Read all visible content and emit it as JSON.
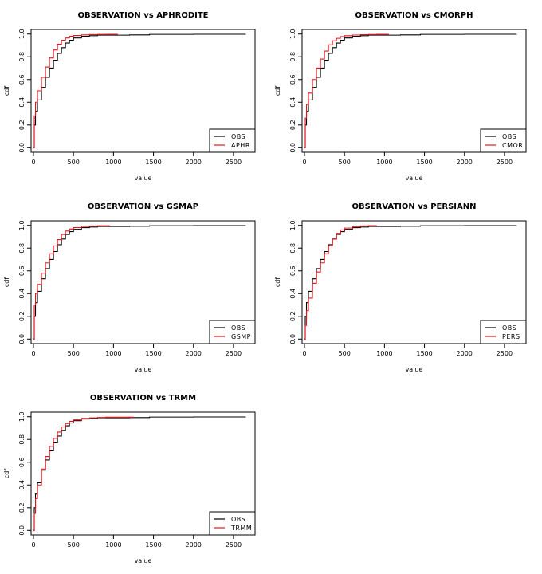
{
  "chart_data": [
    {
      "type": "line",
      "title": "OBSERVATION vs APHRODITE",
      "xlabel": "value",
      "ylabel": "cdf",
      "xlim": [
        -30,
        2770
      ],
      "ylim": [
        -0.04,
        1.04
      ],
      "xticks": [
        0,
        500,
        1000,
        1500,
        2000,
        2500
      ],
      "yticks": [
        0.0,
        0.2,
        0.4,
        0.6,
        0.8,
        1.0
      ],
      "legend_position": "bottom-right",
      "series": [
        {
          "name": "OBS",
          "color": "#000000",
          "x": [
            0,
            10,
            25,
            50,
            100,
            150,
            200,
            250,
            300,
            350,
            400,
            450,
            500,
            600,
            700,
            800,
            1000,
            1200,
            1450,
            2000,
            2650
          ],
          "y": [
            0.0,
            0.2,
            0.32,
            0.42,
            0.53,
            0.62,
            0.7,
            0.77,
            0.83,
            0.88,
            0.92,
            0.945,
            0.965,
            0.98,
            0.985,
            0.99,
            0.99,
            0.992,
            0.997,
            0.998,
            1.0
          ]
        },
        {
          "name": "APHR",
          "color": "#e8141c",
          "x": [
            0,
            10,
            25,
            50,
            100,
            150,
            200,
            250,
            300,
            350,
            400,
            450,
            500,
            600,
            700,
            800,
            900,
            1050
          ],
          "y": [
            0.0,
            0.28,
            0.4,
            0.5,
            0.62,
            0.71,
            0.79,
            0.86,
            0.91,
            0.945,
            0.965,
            0.98,
            0.987,
            0.992,
            0.995,
            0.997,
            0.998,
            1.0
          ]
        }
      ]
    },
    {
      "type": "line",
      "title": "OBSERVATION vs CMORPH",
      "xlabel": "value",
      "ylabel": "cdf",
      "xlim": [
        -30,
        2770
      ],
      "ylim": [
        -0.04,
        1.04
      ],
      "xticks": [
        0,
        500,
        1000,
        1500,
        2000,
        2500
      ],
      "yticks": [
        0.0,
        0.2,
        0.4,
        0.6,
        0.8,
        1.0
      ],
      "legend_position": "bottom-right",
      "series": [
        {
          "name": "OBS",
          "color": "#000000",
          "x": [
            0,
            10,
            25,
            50,
            100,
            150,
            200,
            250,
            300,
            350,
            400,
            450,
            500,
            600,
            700,
            800,
            1000,
            1200,
            1450,
            2000,
            2650
          ],
          "y": [
            0.0,
            0.2,
            0.32,
            0.42,
            0.53,
            0.62,
            0.7,
            0.77,
            0.83,
            0.88,
            0.92,
            0.945,
            0.965,
            0.98,
            0.985,
            0.99,
            0.99,
            0.992,
            0.997,
            0.998,
            1.0
          ]
        },
        {
          "name": "CMOR",
          "color": "#e8141c",
          "x": [
            0,
            10,
            25,
            50,
            100,
            150,
            200,
            250,
            300,
            350,
            400,
            450,
            500,
            600,
            700,
            800,
            900,
            1050
          ],
          "y": [
            0.0,
            0.26,
            0.38,
            0.48,
            0.6,
            0.7,
            0.78,
            0.85,
            0.905,
            0.94,
            0.962,
            0.977,
            0.985,
            0.991,
            0.994,
            0.996,
            0.998,
            1.0
          ]
        }
      ]
    },
    {
      "type": "line",
      "title": "OBSERVATION vs GSMAP",
      "xlabel": "value",
      "ylabel": "cdf",
      "xlim": [
        -30,
        2770
      ],
      "ylim": [
        -0.04,
        1.04
      ],
      "xticks": [
        0,
        500,
        1000,
        1500,
        2000,
        2500
      ],
      "yticks": [
        0.0,
        0.2,
        0.4,
        0.6,
        0.8,
        1.0
      ],
      "legend_position": "bottom-right",
      "series": [
        {
          "name": "OBS",
          "color": "#000000",
          "x": [
            0,
            10,
            25,
            50,
            100,
            150,
            200,
            250,
            300,
            350,
            400,
            450,
            500,
            600,
            700,
            800,
            1000,
            1200,
            1450,
            2000,
            2650
          ],
          "y": [
            0.0,
            0.2,
            0.32,
            0.42,
            0.53,
            0.62,
            0.7,
            0.77,
            0.83,
            0.88,
            0.92,
            0.945,
            0.965,
            0.98,
            0.985,
            0.99,
            0.99,
            0.992,
            0.997,
            0.998,
            1.0
          ]
        },
        {
          "name": "GSMP",
          "color": "#e8141c",
          "x": [
            0,
            10,
            25,
            50,
            100,
            150,
            200,
            250,
            300,
            350,
            400,
            450,
            500,
            600,
            700,
            800,
            950
          ],
          "y": [
            0.0,
            0.3,
            0.4,
            0.48,
            0.58,
            0.67,
            0.75,
            0.82,
            0.875,
            0.92,
            0.95,
            0.968,
            0.98,
            0.99,
            0.994,
            0.997,
            1.0
          ]
        }
      ]
    },
    {
      "type": "line",
      "title": "OBSERVATION vs PERSIANN",
      "xlabel": "value",
      "ylabel": "cdf",
      "xlim": [
        -30,
        2770
      ],
      "ylim": [
        -0.04,
        1.04
      ],
      "xticks": [
        0,
        500,
        1000,
        1500,
        2000,
        2500
      ],
      "yticks": [
        0.0,
        0.2,
        0.4,
        0.6,
        0.8,
        1.0
      ],
      "legend_position": "bottom-right",
      "series": [
        {
          "name": "OBS",
          "color": "#000000",
          "x": [
            0,
            10,
            25,
            50,
            100,
            150,
            200,
            250,
            300,
            350,
            400,
            450,
            500,
            600,
            700,
            800,
            1000,
            1200,
            1450,
            2000,
            2650
          ],
          "y": [
            0.0,
            0.2,
            0.32,
            0.42,
            0.53,
            0.62,
            0.7,
            0.77,
            0.83,
            0.88,
            0.92,
            0.945,
            0.965,
            0.98,
            0.985,
            0.99,
            0.99,
            0.992,
            0.997,
            0.998,
            1.0
          ]
        },
        {
          "name": "PERS",
          "color": "#e8141c",
          "x": [
            0,
            10,
            25,
            50,
            100,
            150,
            200,
            250,
            300,
            350,
            400,
            450,
            500,
            600,
            700,
            800,
            900
          ],
          "y": [
            0.0,
            0.12,
            0.25,
            0.36,
            0.49,
            0.59,
            0.67,
            0.75,
            0.82,
            0.88,
            0.93,
            0.96,
            0.976,
            0.989,
            0.995,
            0.998,
            1.0
          ]
        }
      ]
    },
    {
      "type": "line",
      "title": "OBSERVATION vs TRMM",
      "xlabel": "value",
      "ylabel": "cdf",
      "xlim": [
        -30,
        2770
      ],
      "ylim": [
        -0.04,
        1.04
      ],
      "xticks": [
        0,
        500,
        1000,
        1500,
        2000,
        2500
      ],
      "yticks": [
        0.0,
        0.2,
        0.4,
        0.6,
        0.8,
        1.0
      ],
      "legend_position": "bottom-right",
      "series": [
        {
          "name": "OBS",
          "color": "#000000",
          "x": [
            0,
            10,
            25,
            50,
            100,
            150,
            200,
            250,
            300,
            350,
            400,
            450,
            500,
            600,
            700,
            800,
            1000,
            1200,
            1450,
            2000,
            2650
          ],
          "y": [
            0.0,
            0.2,
            0.32,
            0.42,
            0.53,
            0.62,
            0.7,
            0.77,
            0.83,
            0.88,
            0.92,
            0.945,
            0.965,
            0.98,
            0.985,
            0.99,
            0.99,
            0.992,
            0.997,
            0.998,
            1.0
          ]
        },
        {
          "name": "TRMM",
          "color": "#e8141c",
          "x": [
            0,
            10,
            25,
            50,
            100,
            150,
            200,
            250,
            300,
            350,
            400,
            450,
            500,
            600,
            700,
            800,
            900,
            1250
          ],
          "y": [
            0.0,
            0.15,
            0.28,
            0.4,
            0.54,
            0.65,
            0.74,
            0.81,
            0.865,
            0.91,
            0.94,
            0.96,
            0.972,
            0.985,
            0.99,
            0.993,
            0.996,
            1.0
          ]
        }
      ]
    }
  ]
}
